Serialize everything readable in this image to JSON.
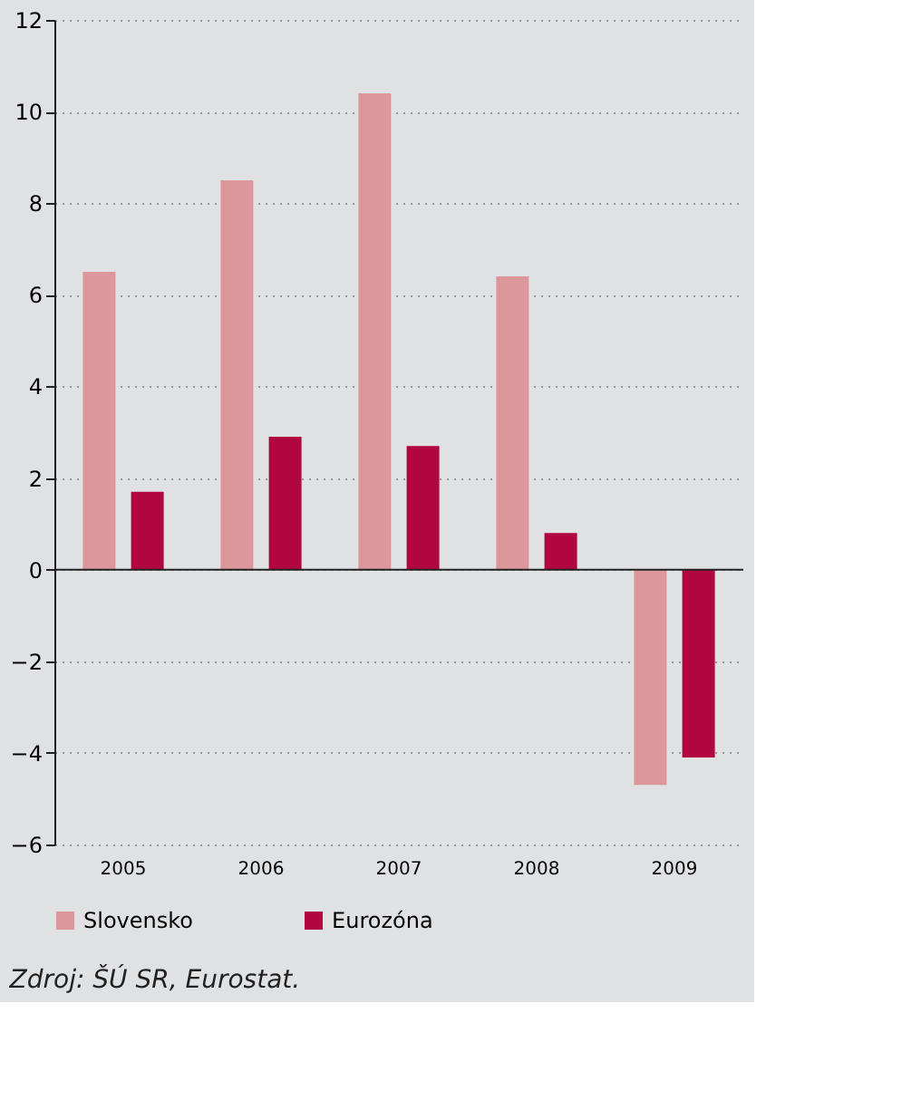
{
  "chart_data": {
    "type": "bar",
    "categories": [
      "2005",
      "2006",
      "2007",
      "2008",
      "2009"
    ],
    "series": [
      {
        "name": "Slovensko",
        "color": "#dc979a",
        "values": [
          6.5,
          8.5,
          10.4,
          6.4,
          -4.7
        ]
      },
      {
        "name": "Eurozóna",
        "color": "#b20641",
        "values": [
          1.7,
          2.9,
          2.7,
          0.8,
          -4.1
        ]
      }
    ],
    "ylim": [
      -6,
      12
    ],
    "yticks": [
      -6,
      -4,
      -2,
      0,
      2,
      4,
      6,
      8,
      10,
      12
    ],
    "grid": "y",
    "legend": "bottom",
    "annotations": [
      "Zdroj: ŠÚ SR, Eurostat."
    ]
  }
}
